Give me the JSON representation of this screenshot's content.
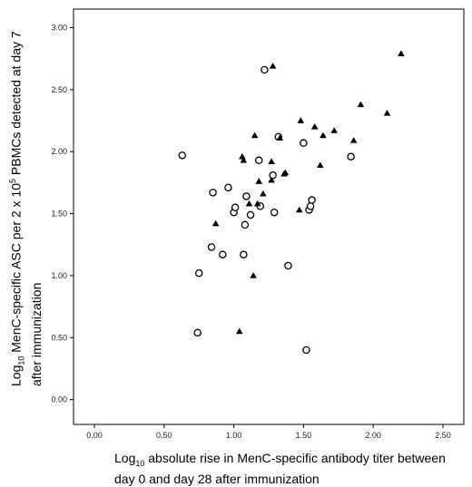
{
  "chart_data": {
    "type": "scatter",
    "xlim": [
      -0.15,
      2.65
    ],
    "ylim": [
      -0.2,
      3.15
    ],
    "x_ticks": [
      "0.00",
      "0.50",
      "1.00",
      "1.50",
      "2.00",
      "2.50"
    ],
    "y_ticks": [
      "0.00",
      "0.50",
      "1.00",
      "1.50",
      "2.00",
      "2.50",
      "3.00"
    ],
    "x_tick_values": [
      0,
      0.5,
      1.0,
      1.5,
      2.0,
      2.5
    ],
    "y_tick_values": [
      0,
      0.5,
      1.0,
      1.5,
      2.0,
      2.5,
      3.0
    ],
    "grid": false,
    "legend": "none",
    "xlabel": {
      "pre": "Log",
      "sub": "10",
      "post": " absolute rise in MenC-specific antibody titer between day 0 and day 28 after immunization"
    },
    "ylabel": {
      "pre": "Log",
      "sub": "10",
      "mid": " MenC-specific ASC per 2 x 10",
      "sup": "5",
      "post": " PBMCs detected at day 7 after  immunization"
    },
    "series": [
      {
        "marker": "circle",
        "points": [
          [
            0.63,
            1.97
          ],
          [
            0.74,
            0.54
          ],
          [
            0.75,
            1.02
          ],
          [
            0.84,
            1.23
          ],
          [
            0.85,
            1.67
          ],
          [
            0.92,
            1.17
          ],
          [
            0.96,
            1.71
          ],
          [
            1.0,
            1.51
          ],
          [
            1.01,
            1.55
          ],
          [
            1.07,
            1.17
          ],
          [
            1.08,
            1.41
          ],
          [
            1.09,
            1.64
          ],
          [
            1.12,
            1.49
          ],
          [
            1.18,
            1.93
          ],
          [
            1.19,
            1.56
          ],
          [
            1.22,
            2.66
          ],
          [
            1.28,
            1.81
          ],
          [
            1.29,
            1.51
          ],
          [
            1.32,
            2.12
          ],
          [
            1.39,
            1.08
          ],
          [
            1.5,
            2.07
          ],
          [
            1.52,
            0.4
          ],
          [
            1.54,
            1.53
          ],
          [
            1.55,
            1.56
          ],
          [
            1.56,
            1.61
          ],
          [
            1.84,
            1.96
          ]
        ]
      },
      {
        "marker": "triangle",
        "points": [
          [
            0.87,
            1.42
          ],
          [
            1.04,
            0.55
          ],
          [
            1.06,
            1.96
          ],
          [
            1.07,
            1.93
          ],
          [
            1.11,
            1.58
          ],
          [
            1.14,
            1.0
          ],
          [
            1.15,
            2.13
          ],
          [
            1.17,
            1.58
          ],
          [
            1.18,
            1.76
          ],
          [
            1.21,
            1.66
          ],
          [
            1.27,
            1.77
          ],
          [
            1.27,
            1.92
          ],
          [
            1.28,
            2.69
          ],
          [
            1.33,
            2.11
          ],
          [
            1.36,
            1.82
          ],
          [
            1.37,
            1.83
          ],
          [
            1.47,
            1.53
          ],
          [
            1.48,
            2.25
          ],
          [
            1.58,
            2.2
          ],
          [
            1.62,
            1.89
          ],
          [
            1.64,
            2.13
          ],
          [
            1.72,
            2.17
          ],
          [
            1.86,
            2.09
          ],
          [
            1.91,
            2.38
          ],
          [
            2.1,
            2.31
          ],
          [
            2.2,
            2.79
          ]
        ]
      }
    ]
  }
}
